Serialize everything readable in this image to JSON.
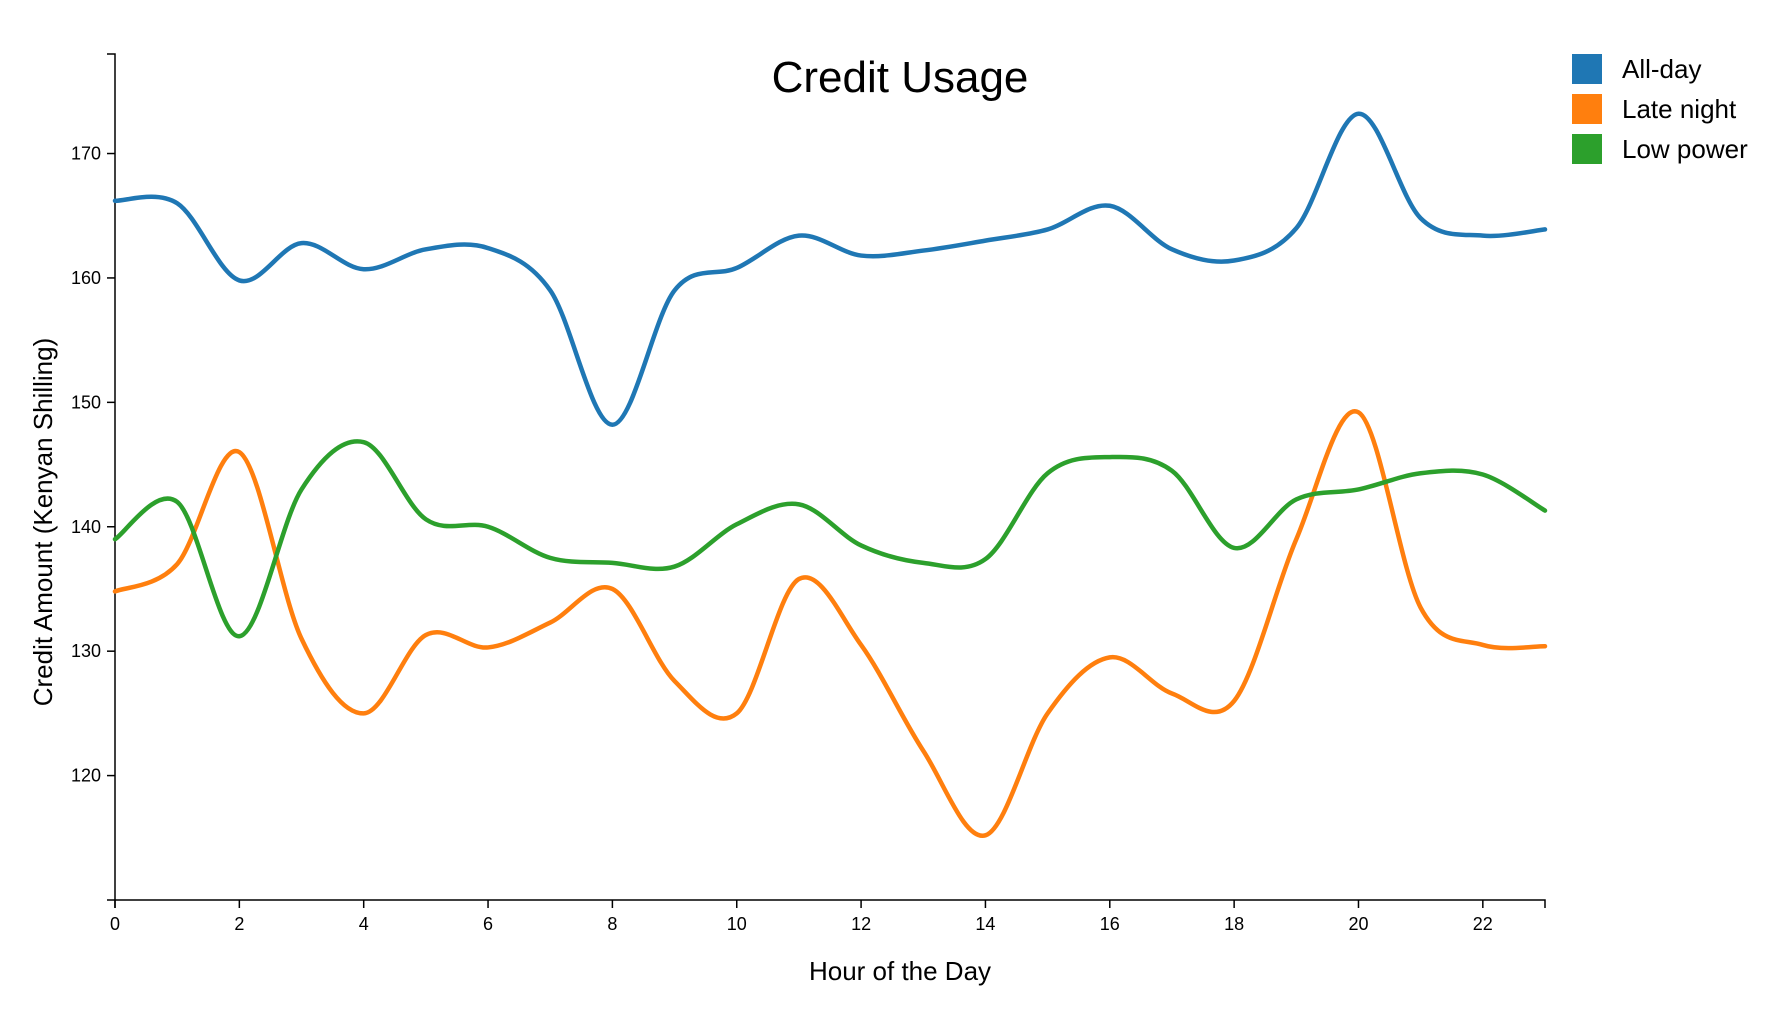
{
  "chart_data": {
    "type": "line",
    "title": "Credit Usage",
    "xlabel": "Hour of the Day",
    "ylabel": "Credit Amount (Kenyan Shilling)",
    "xlim": [
      0,
      23
    ],
    "ylim": [
      110,
      178
    ],
    "xticks": [
      0,
      2,
      4,
      6,
      8,
      10,
      12,
      14,
      16,
      18,
      20,
      22
    ],
    "yticks": [
      120,
      130,
      140,
      150,
      160,
      170
    ],
    "legend_position": "top-right",
    "x": [
      0,
      1,
      2,
      3,
      4,
      5,
      6,
      7,
      8,
      9,
      10,
      11,
      12,
      13,
      14,
      15,
      16,
      17,
      18,
      19,
      20,
      21,
      22,
      23
    ],
    "series": [
      {
        "name": "All-day",
        "color": "#1f77b4",
        "values": [
          166.2,
          166.0,
          159.8,
          162.8,
          160.7,
          162.3,
          162.4,
          159.0,
          148.2,
          159.0,
          160.8,
          163.4,
          161.8,
          162.2,
          163.0,
          163.9,
          165.8,
          162.3,
          161.4,
          164.0,
          173.2,
          164.8,
          163.4,
          163.9
        ]
      },
      {
        "name": "Late night",
        "color": "#ff7f0e",
        "values": [
          134.8,
          137.0,
          146.0,
          131.0,
          125.0,
          131.3,
          130.3,
          132.3,
          135.0,
          127.6,
          125.0,
          135.8,
          130.5,
          122.0,
          115.2,
          125.0,
          129.5,
          126.6,
          126.0,
          139.0,
          149.2,
          133.5,
          130.5,
          130.4
        ]
      },
      {
        "name": "Low power",
        "color": "#2ca02c",
        "values": [
          139.0,
          142.0,
          131.2,
          143.0,
          146.8,
          140.6,
          140.0,
          137.5,
          137.1,
          136.8,
          140.2,
          141.8,
          138.5,
          137.1,
          137.4,
          144.3,
          145.6,
          144.5,
          138.3,
          142.2,
          143.0,
          144.3,
          144.2,
          141.3
        ]
      }
    ]
  }
}
